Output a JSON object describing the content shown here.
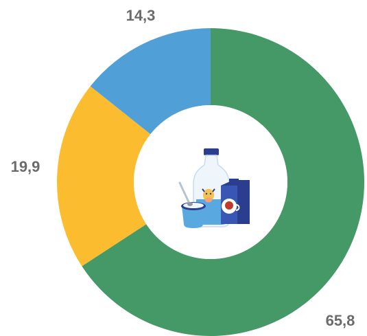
{
  "chart_data": {
    "type": "pie",
    "style": "donut",
    "title": "",
    "values": [
      65.8,
      19.9,
      14.3
    ],
    "labels": [
      "65,8",
      "19,9",
      "14,3"
    ],
    "colors": [
      "#459966",
      "#fbbd2f",
      "#519fd7"
    ],
    "center_icon": "dairy-products-icon",
    "legend": "none"
  }
}
